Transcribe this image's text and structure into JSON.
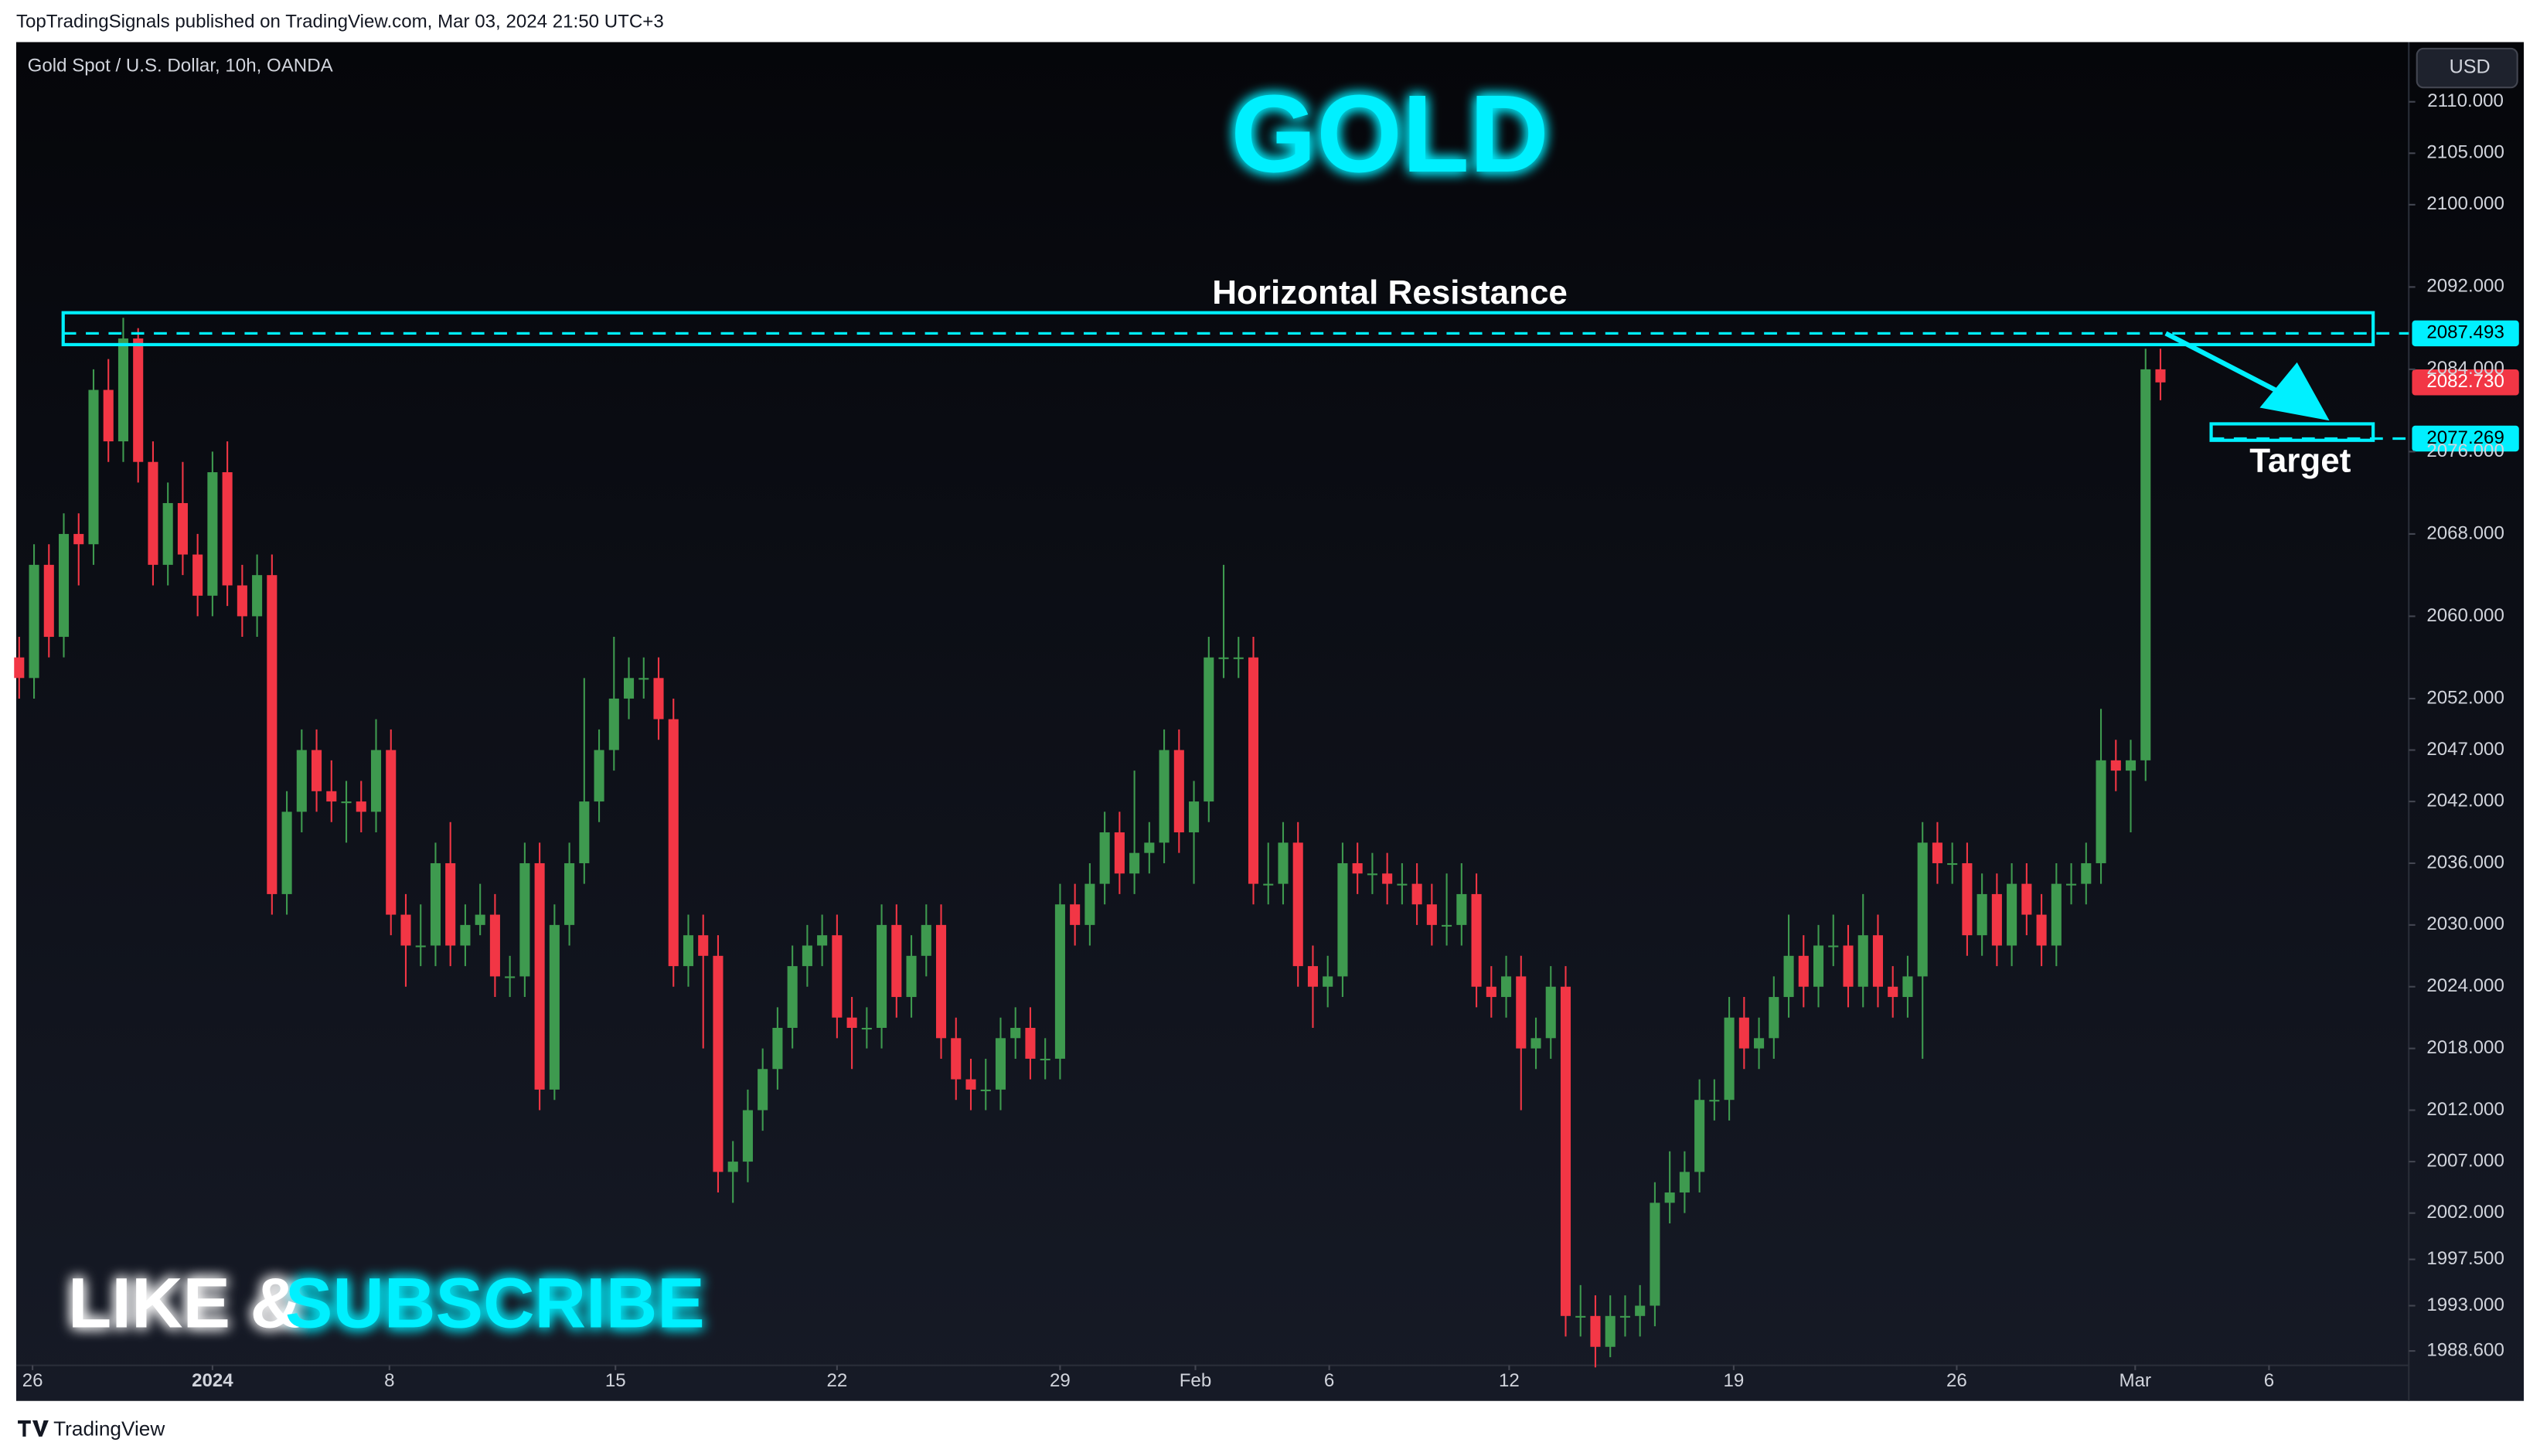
{
  "header": "TopTradingSignals published on TradingView.com, Mar 03, 2024 21:50 UTC+3",
  "footer": "TradingView",
  "chart_data": {
    "type": "candlestick",
    "symbol": "Gold Spot / U.S. Dollar, 10h, OANDA",
    "title": "GOLD",
    "currency": "USD",
    "banner": [
      "LIKE &",
      "SUBSCRIBE"
    ],
    "up_color": "#3e9a4f",
    "down_color": "#f23645",
    "accent_color": "#00f0ff",
    "ylim": [
      1983.9,
      2115.8
    ],
    "yticks": [
      {
        "value": 2110,
        "label": "2110.000"
      },
      {
        "value": 2105,
        "label": "2105.000"
      },
      {
        "value": 2100,
        "label": "2100.000"
      },
      {
        "value": 2092,
        "label": "2092.000"
      },
      {
        "value": 2084,
        "label": "2084.000"
      },
      {
        "value": 2076,
        "label": "2076.000"
      },
      {
        "value": 2068,
        "label": "2068.000"
      },
      {
        "value": 2060,
        "label": "2060.000"
      },
      {
        "value": 2052,
        "label": "2052.000"
      },
      {
        "value": 2047,
        "label": "2047.000"
      },
      {
        "value": 2042,
        "label": "2042.000"
      },
      {
        "value": 2036,
        "label": "2036.000"
      },
      {
        "value": 2030,
        "label": "2030.000"
      },
      {
        "value": 2024,
        "label": "2024.000"
      },
      {
        "value": 2018,
        "label": "2018.000"
      },
      {
        "value": 2012,
        "label": "2012.000"
      },
      {
        "value": 2007,
        "label": "2007.000"
      },
      {
        "value": 2002,
        "label": "2002.000"
      },
      {
        "value": 1997.5,
        "label": "1997.500"
      },
      {
        "value": 1993,
        "label": "1993.000"
      },
      {
        "value": 1988.6,
        "label": "1988.600"
      }
    ],
    "xlim": [
      -0.2,
      160.7
    ],
    "xticks": [
      {
        "value": 0.9,
        "label": "26"
      },
      {
        "value": 13,
        "label": "2024"
      },
      {
        "value": 24.9,
        "label": "8"
      },
      {
        "value": 40.1,
        "label": "15"
      },
      {
        "value": 55,
        "label": "22"
      },
      {
        "value": 70,
        "label": "29"
      },
      {
        "value": 79.1,
        "label": "Feb"
      },
      {
        "value": 88.1,
        "label": "6"
      },
      {
        "value": 100.2,
        "label": "12"
      },
      {
        "value": 115.3,
        "label": "19"
      },
      {
        "value": 130.3,
        "label": "26"
      },
      {
        "value": 142.3,
        "label": "Mar"
      },
      {
        "value": 151.3,
        "label": "6"
      }
    ],
    "resistance": {
      "label": "Horizontal Resistance",
      "level": 2087.493,
      "zone": [
        2086.4,
        2089.5
      ]
    },
    "target": {
      "label": "Target",
      "level": 2077.269,
      "zone": [
        2077.1,
        2078.7
      ]
    },
    "price_labels": [
      {
        "value": 2087.493,
        "label": "2087.493",
        "color": "#00f0ff"
      },
      {
        "value": 2082.73,
        "label": "2082.730",
        "color": "#f23645"
      },
      {
        "value": 2077.269,
        "label": "2077.269",
        "color": "#00f0ff"
      }
    ],
    "ohlc": [
      [
        2056,
        2058,
        2052,
        2054
      ],
      [
        2054,
        2067,
        2052,
        2065
      ],
      [
        2065,
        2067,
        2056,
        2058
      ],
      [
        2058,
        2070,
        2056,
        2068
      ],
      [
        2068,
        2070,
        2063,
        2067
      ],
      [
        2067,
        2084,
        2065,
        2082
      ],
      [
        2082,
        2085,
        2075,
        2077
      ],
      [
        2077,
        2089,
        2075,
        2087
      ],
      [
        2087,
        2088,
        2073,
        2075
      ],
      [
        2075,
        2077,
        2063,
        2065
      ],
      [
        2065,
        2073,
        2063,
        2071
      ],
      [
        2071,
        2075,
        2064,
        2066
      ],
      [
        2066,
        2068,
        2060,
        2062
      ],
      [
        2062,
        2076,
        2060,
        2074
      ],
      [
        2074,
        2077,
        2061,
        2063
      ],
      [
        2063,
        2065,
        2058,
        2060
      ],
      [
        2060,
        2066,
        2058,
        2064
      ],
      [
        2064,
        2066,
        2031,
        2033
      ],
      [
        2033,
        2043,
        2031,
        2041
      ],
      [
        2041,
        2049,
        2039,
        2047
      ],
      [
        2047,
        2049,
        2041,
        2043
      ],
      [
        2043,
        2046,
        2040,
        2042
      ],
      [
        2042,
        2044,
        2038,
        2042
      ],
      [
        2042,
        2044,
        2039,
        2041
      ],
      [
        2041,
        2050,
        2039,
        2047
      ],
      [
        2047,
        2049,
        2029,
        2031
      ],
      [
        2031,
        2033,
        2024,
        2028
      ],
      [
        2028,
        2032,
        2026,
        2028
      ],
      [
        2028,
        2038,
        2026,
        2036
      ],
      [
        2036,
        2040,
        2026,
        2028
      ],
      [
        2028,
        2032,
        2026,
        2030
      ],
      [
        2030,
        2034,
        2029,
        2031
      ],
      [
        2031,
        2033,
        2023,
        2025
      ],
      [
        2025,
        2027,
        2023,
        2025
      ],
      [
        2025,
        2038,
        2023,
        2036
      ],
      [
        2036,
        2038,
        2012,
        2014
      ],
      [
        2014,
        2032,
        2013,
        2030
      ],
      [
        2030,
        2038,
        2028,
        2036
      ],
      [
        2036,
        2054,
        2034,
        2042
      ],
      [
        2042,
        2049,
        2040,
        2047
      ],
      [
        2047,
        2058,
        2045,
        2052
      ],
      [
        2052,
        2056,
        2050,
        2054
      ],
      [
        2054,
        2056,
        2052,
        2054
      ],
      [
        2054,
        2056,
        2048,
        2050
      ],
      [
        2050,
        2052,
        2024,
        2026
      ],
      [
        2026,
        2031,
        2024,
        2029
      ],
      [
        2029,
        2031,
        2018,
        2027
      ],
      [
        2027,
        2029,
        2004,
        2006
      ],
      [
        2006,
        2009,
        2003,
        2007
      ],
      [
        2007,
        2014,
        2005,
        2012
      ],
      [
        2012,
        2018,
        2010,
        2016
      ],
      [
        2016,
        2022,
        2014,
        2020
      ],
      [
        2020,
        2028,
        2018,
        2026
      ],
      [
        2026,
        2030,
        2024,
        2028
      ],
      [
        2028,
        2031,
        2026,
        2029
      ],
      [
        2029,
        2031,
        2019,
        2021
      ],
      [
        2021,
        2023,
        2016,
        2020
      ],
      [
        2020,
        2022,
        2018,
        2020
      ],
      [
        2020,
        2032,
        2018,
        2030
      ],
      [
        2030,
        2032,
        2021,
        2023
      ],
      [
        2023,
        2029,
        2021,
        2027
      ],
      [
        2027,
        2032,
        2025,
        2030
      ],
      [
        2030,
        2032,
        2017,
        2019
      ],
      [
        2019,
        2021,
        2013,
        2015
      ],
      [
        2015,
        2017,
        2012,
        2014
      ],
      [
        2014,
        2017,
        2012,
        2014
      ],
      [
        2014,
        2021,
        2012,
        2019
      ],
      [
        2019,
        2022,
        2017,
        2020
      ],
      [
        2020,
        2022,
        2015,
        2017
      ],
      [
        2017,
        2019,
        2015,
        2017
      ],
      [
        2017,
        2034,
        2015,
        2032
      ],
      [
        2032,
        2034,
        2028,
        2030
      ],
      [
        2030,
        2036,
        2028,
        2034
      ],
      [
        2034,
        2041,
        2032,
        2039
      ],
      [
        2039,
        2041,
        2033,
        2035
      ],
      [
        2035,
        2045,
        2033,
        2037
      ],
      [
        2037,
        2040,
        2035,
        2038
      ],
      [
        2038,
        2049,
        2036,
        2047
      ],
      [
        2047,
        2049,
        2037,
        2039
      ],
      [
        2039,
        2044,
        2034,
        2042
      ],
      [
        2042,
        2058,
        2040,
        2056
      ],
      [
        2056,
        2065,
        2054,
        2056
      ],
      [
        2056,
        2058,
        2054,
        2056
      ],
      [
        2056,
        2058,
        2032,
        2034
      ],
      [
        2034,
        2038,
        2032,
        2034
      ],
      [
        2034,
        2040,
        2032,
        2038
      ],
      [
        2038,
        2040,
        2024,
        2026
      ],
      [
        2026,
        2028,
        2020,
        2024
      ],
      [
        2024,
        2027,
        2022,
        2025
      ],
      [
        2025,
        2038,
        2023,
        2036
      ],
      [
        2036,
        2038,
        2033,
        2035
      ],
      [
        2035,
        2037,
        2033,
        2035
      ],
      [
        2035,
        2037,
        2032,
        2034
      ],
      [
        2034,
        2036,
        2032,
        2034
      ],
      [
        2034,
        2036,
        2030,
        2032
      ],
      [
        2032,
        2034,
        2028,
        2030
      ],
      [
        2030,
        2035,
        2028,
        2030
      ],
      [
        2030,
        2036,
        2028,
        2033
      ],
      [
        2033,
        2035,
        2022,
        2024
      ],
      [
        2024,
        2026,
        2021,
        2023
      ],
      [
        2023,
        2027,
        2021,
        2025
      ],
      [
        2025,
        2027,
        2012,
        2018
      ],
      [
        2018,
        2021,
        2016,
        2019
      ],
      [
        2019,
        2026,
        2017,
        2024
      ],
      [
        2024,
        2026,
        1990,
        1992
      ],
      [
        1992,
        1995,
        1990,
        1992
      ],
      [
        1992,
        1994,
        1987,
        1989
      ],
      [
        1989,
        1994,
        1988,
        1992
      ],
      [
        1992,
        1994,
        1990,
        1992
      ],
      [
        1992,
        1995,
        1990,
        1993
      ],
      [
        1993,
        2005,
        1991,
        2003
      ],
      [
        2003,
        2008,
        2001,
        2004
      ],
      [
        2004,
        2008,
        2002,
        2006
      ],
      [
        2006,
        2015,
        2004,
        2013
      ],
      [
        2013,
        2015,
        2011,
        2013
      ],
      [
        2013,
        2023,
        2011,
        2021
      ],
      [
        2021,
        2023,
        2016,
        2018
      ],
      [
        2018,
        2021,
        2016,
        2019
      ],
      [
        2019,
        2025,
        2017,
        2023
      ],
      [
        2023,
        2031,
        2021,
        2027
      ],
      [
        2027,
        2029,
        2022,
        2024
      ],
      [
        2024,
        2030,
        2022,
        2028
      ],
      [
        2028,
        2031,
        2026,
        2028
      ],
      [
        2028,
        2030,
        2022,
        2024
      ],
      [
        2024,
        2033,
        2022,
        2029
      ],
      [
        2029,
        2031,
        2022,
        2024
      ],
      [
        2024,
        2026,
        2021,
        2023
      ],
      [
        2023,
        2027,
        2021,
        2025
      ],
      [
        2025,
        2040,
        2017,
        2038
      ],
      [
        2038,
        2040,
        2034,
        2036
      ],
      [
        2036,
        2038,
        2034,
        2036
      ],
      [
        2036,
        2038,
        2027,
        2029
      ],
      [
        2029,
        2035,
        2027,
        2033
      ],
      [
        2033,
        2035,
        2026,
        2028
      ],
      [
        2028,
        2036,
        2026,
        2034
      ],
      [
        2034,
        2036,
        2029,
        2031
      ],
      [
        2031,
        2033,
        2026,
        2028
      ],
      [
        2028,
        2036,
        2026,
        2034
      ],
      [
        2034,
        2036,
        2032,
        2034
      ],
      [
        2034,
        2038,
        2032,
        2036
      ],
      [
        2036,
        2051,
        2034,
        2046
      ],
      [
        2046,
        2048,
        2043,
        2045
      ],
      [
        2045,
        2048,
        2039,
        2046
      ],
      [
        2046,
        2086,
        2044,
        2084
      ],
      [
        2084,
        2086,
        2081,
        2082.73
      ]
    ]
  }
}
